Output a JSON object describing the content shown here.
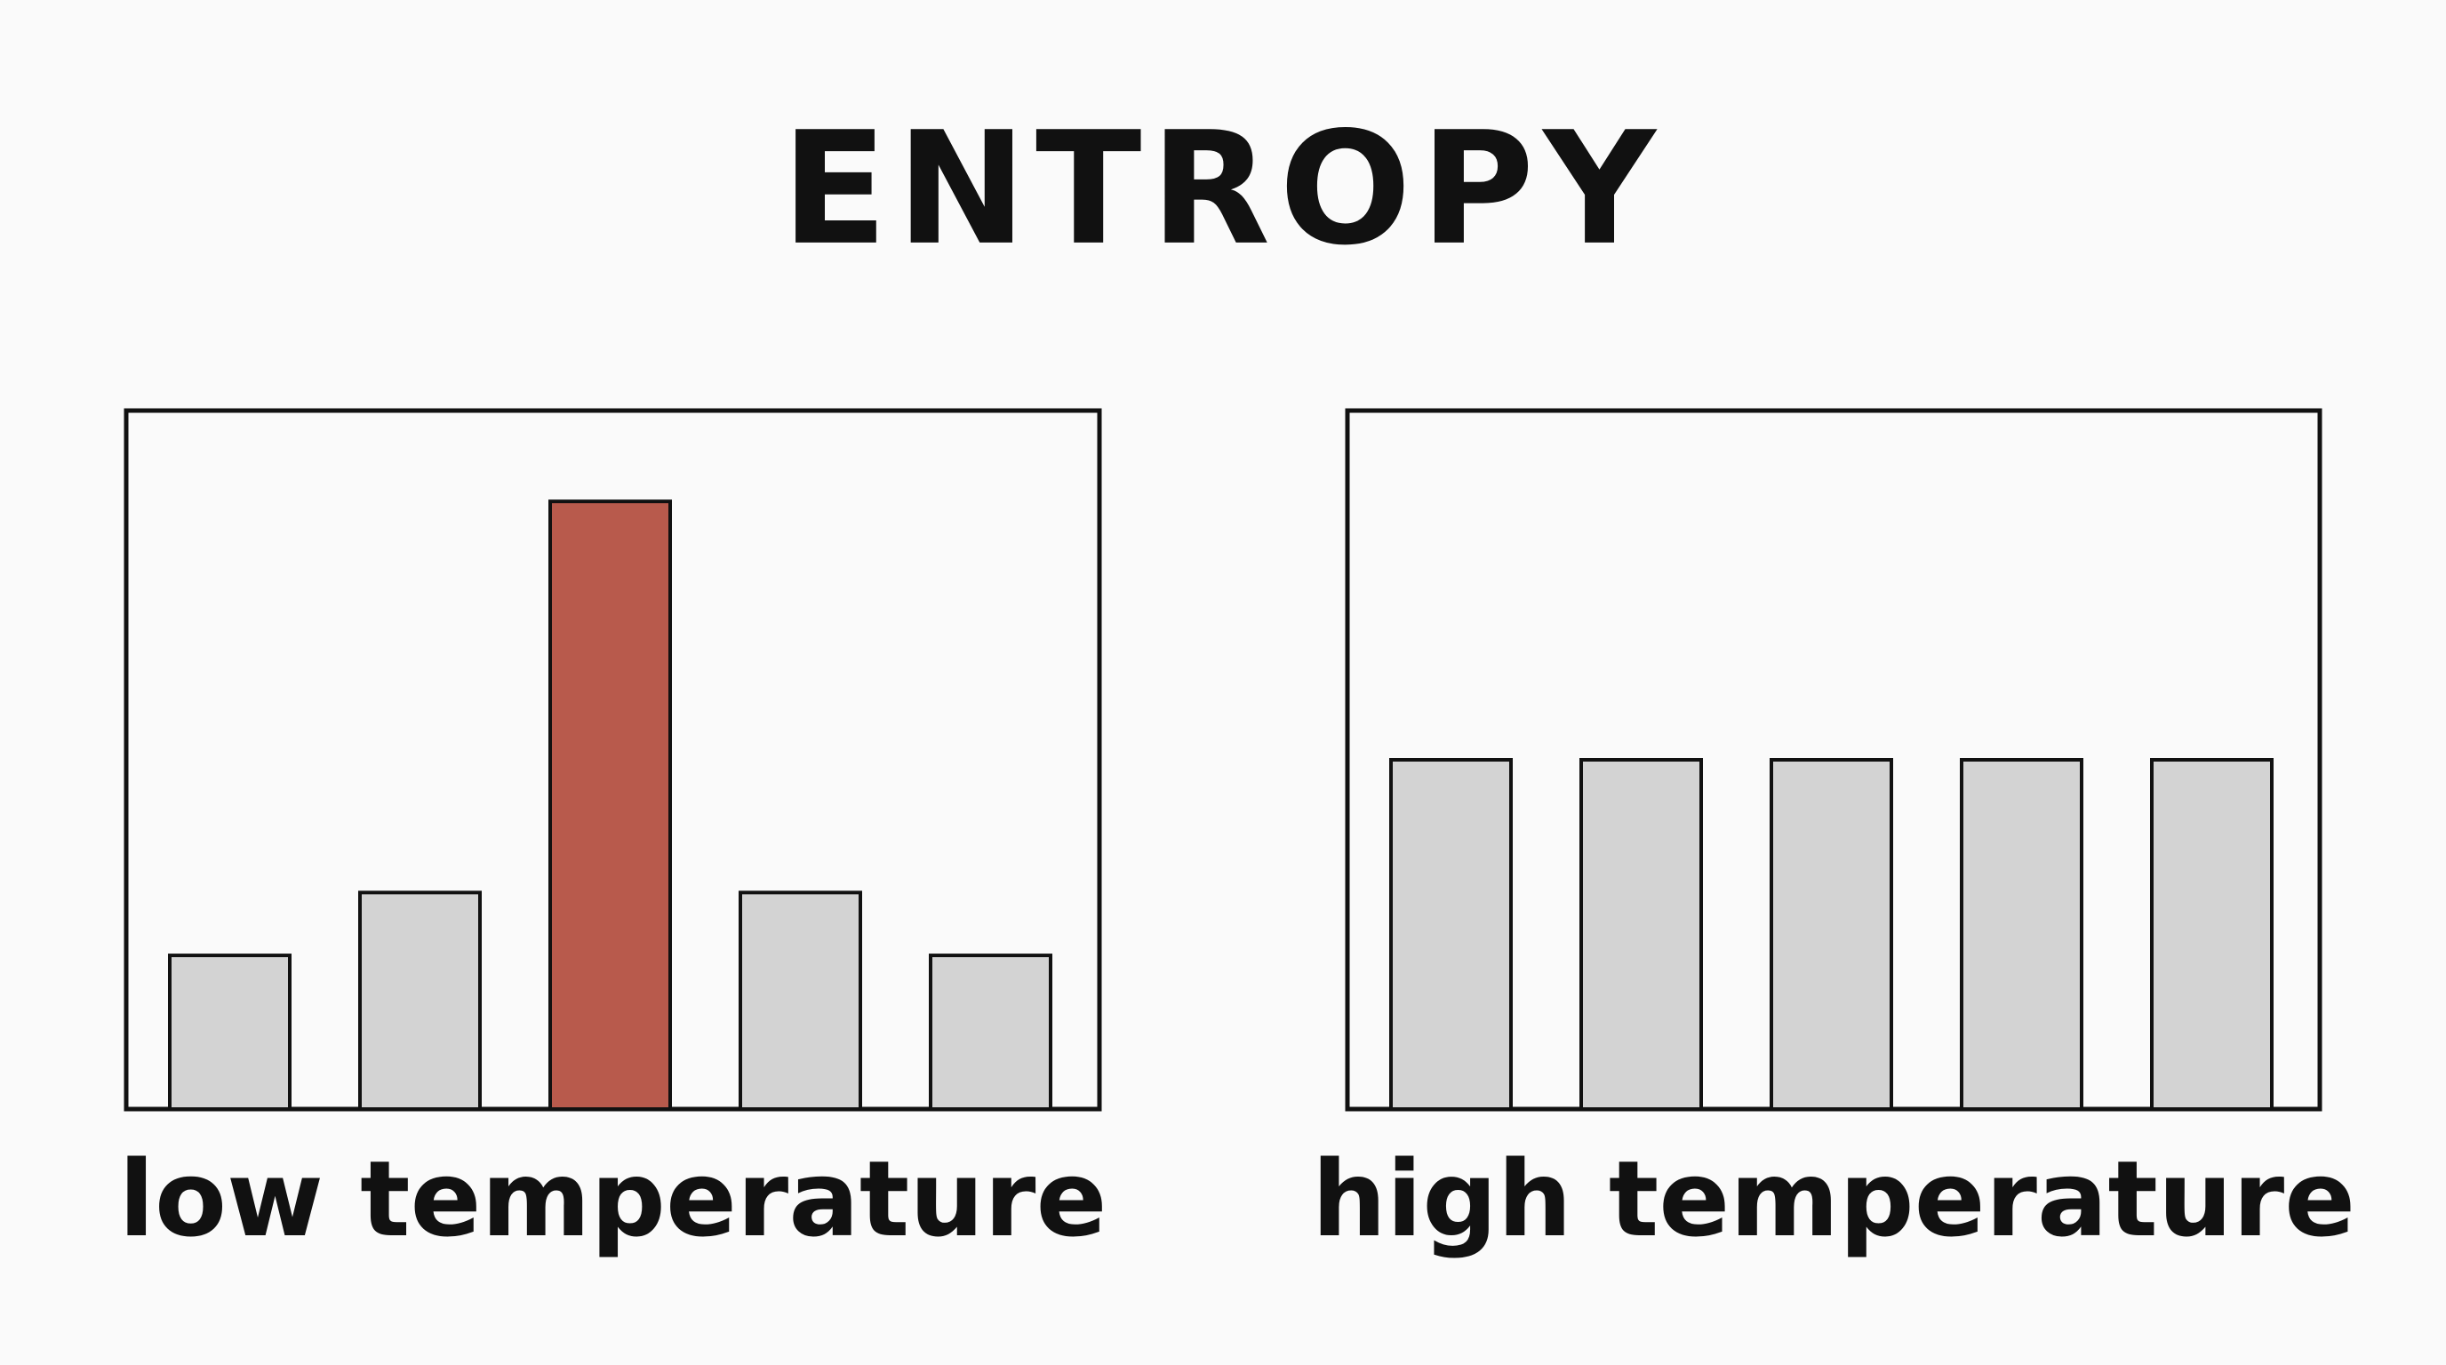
{
  "title": "ENTROPY",
  "chart_data": [
    {
      "type": "bar",
      "xlabel": "low temperature",
      "values": [
        22,
        31,
        87,
        31,
        22
      ],
      "colors": [
        "#d3d3d3",
        "#d3d3d3",
        "#b85a4c",
        "#d3d3d3",
        "#d3d3d3"
      ],
      "ylim": [
        0,
        100
      ]
    },
    {
      "type": "bar",
      "xlabel": "high temperature",
      "values": [
        50,
        50,
        50,
        50,
        50
      ],
      "colors": [
        "#d3d3d3",
        "#d3d3d3",
        "#d3d3d3",
        "#d3d3d3",
        "#d3d3d3"
      ],
      "ylim": [
        0,
        100
      ]
    }
  ]
}
